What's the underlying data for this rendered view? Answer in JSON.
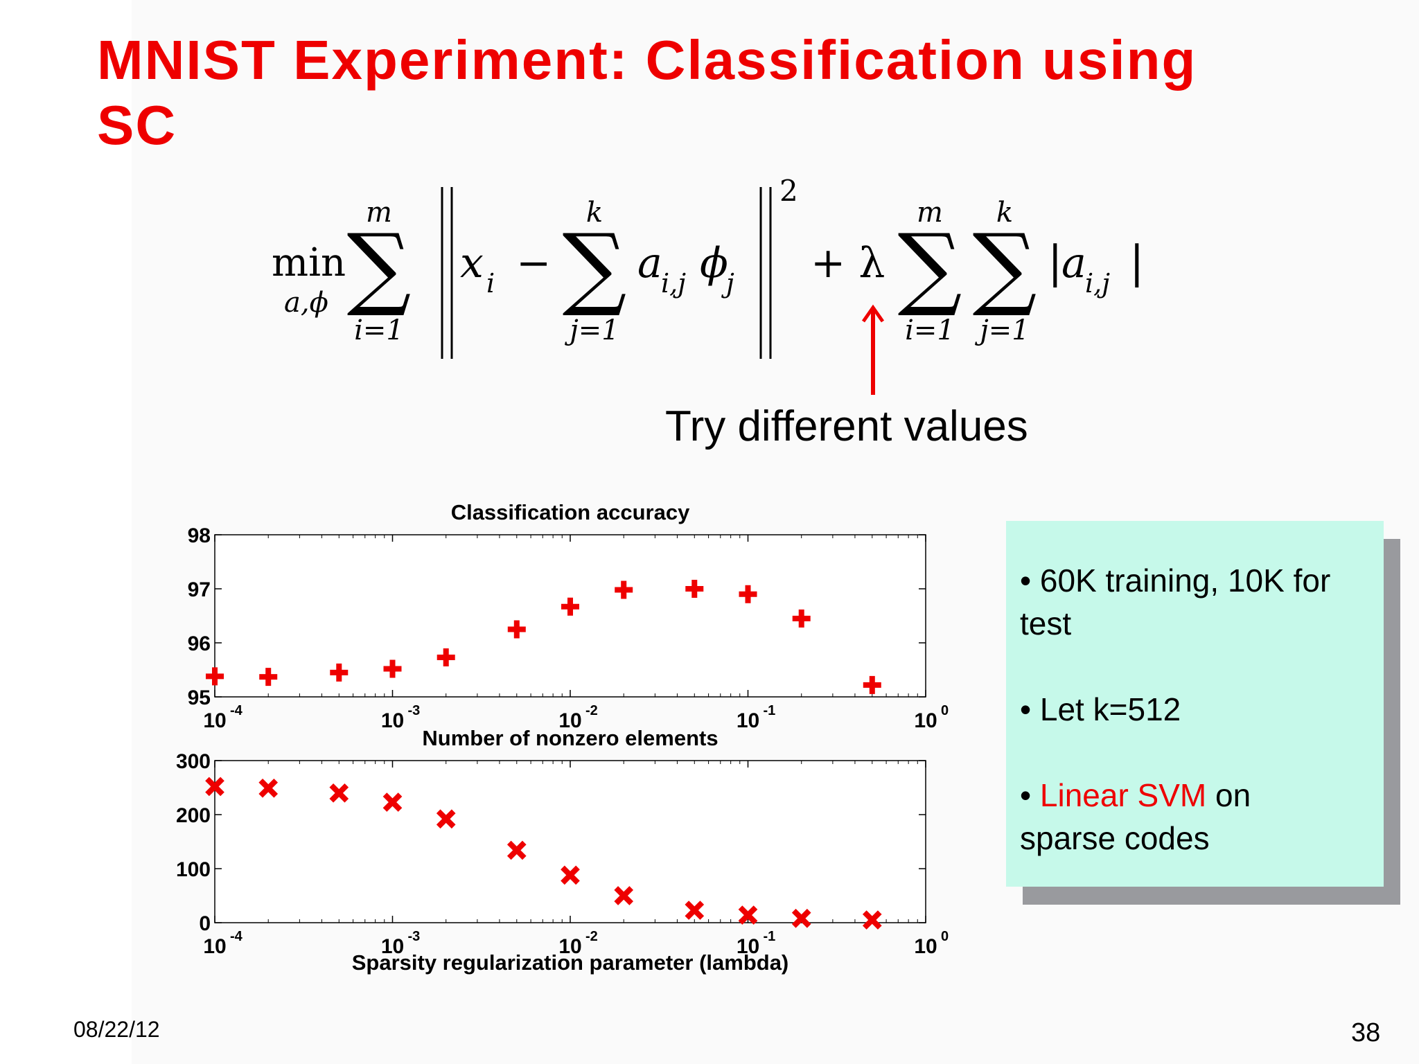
{
  "slide": {
    "title": "MNIST Experiment: Classification using SC",
    "annotation": "Try different values",
    "date": "08/22/12",
    "page_number": "38"
  },
  "formula": {
    "min_operator": "min",
    "min_subscript": "a,ϕ",
    "sum_symbol": "∑",
    "sum1_upper": "m",
    "sum1_lower": "i=1",
    "x_term": "x",
    "x_index": "i",
    "minus": "−",
    "sum2_upper": "k",
    "sum2_lower": "j=1",
    "a_term": "a",
    "a_index": "i,j",
    "phi_term": "ϕ",
    "phi_index": "j",
    "exponent": "2",
    "plus_lambda": "+ λ",
    "sum3_upper": "m",
    "sum3_lower": "i=1",
    "sum4_upper": "k",
    "sum4_lower": "j=1",
    "abs_open": "|",
    "abs_close": "|"
  },
  "infobox": {
    "bullet1": "60K training, 10K for test",
    "bullet2": "Let k=512",
    "bullet3_highlight": "Linear SVM",
    "bullet3_rest_a": " on",
    "bullet3_rest_b": "sparse codes",
    "bullet_symbol": "•",
    "highlight_color": "#ee0000"
  },
  "chart_data": [
    {
      "type": "scatter",
      "title": "Classification accuracy",
      "xlabel": "",
      "ylabel": "",
      "xscale": "log",
      "xlim": [
        0.0001,
        1
      ],
      "ylim": [
        95,
        98
      ],
      "yticks": [
        95,
        96,
        97,
        98
      ],
      "xticks": [
        {
          "base": "10",
          "exp": "-4"
        },
        {
          "base": "10",
          "exp": "-3"
        },
        {
          "base": "10",
          "exp": "-2"
        },
        {
          "base": "10",
          "exp": "-1"
        },
        {
          "base": "10",
          "exp": "0"
        }
      ],
      "marker": "plus",
      "color": "#ee0000",
      "grid": false,
      "series": [
        {
          "x": [
            0.0001,
            0.0002,
            0.0005,
            0.001,
            0.002,
            0.005,
            0.01,
            0.02,
            0.05,
            0.1,
            0.2,
            0.5
          ],
          "y": [
            95.38,
            95.37,
            95.45,
            95.52,
            95.73,
            96.25,
            96.67,
            96.98,
            97.0,
            96.9,
            96.45,
            95.22
          ]
        }
      ]
    },
    {
      "type": "scatter",
      "title": "Number of nonzero elements",
      "xlabel": "Sparsity regularization parameter (lambda)",
      "ylabel": "",
      "xscale": "log",
      "xlim": [
        0.0001,
        1
      ],
      "ylim": [
        0,
        300
      ],
      "yticks": [
        0,
        100,
        200,
        300
      ],
      "xticks": [
        {
          "base": "10",
          "exp": "-4"
        },
        {
          "base": "10",
          "exp": "-3"
        },
        {
          "base": "10",
          "exp": "-2"
        },
        {
          "base": "10",
          "exp": "-1"
        },
        {
          "base": "10",
          "exp": "0"
        }
      ],
      "marker": "x",
      "color": "#ee0000",
      "grid": false,
      "series": [
        {
          "x": [
            0.0001,
            0.0002,
            0.0005,
            0.001,
            0.002,
            0.005,
            0.01,
            0.02,
            0.05,
            0.1,
            0.2,
            0.5
          ],
          "y": [
            252,
            249,
            240,
            223,
            192,
            134,
            88,
            50,
            23,
            14,
            8,
            5
          ]
        }
      ]
    }
  ]
}
